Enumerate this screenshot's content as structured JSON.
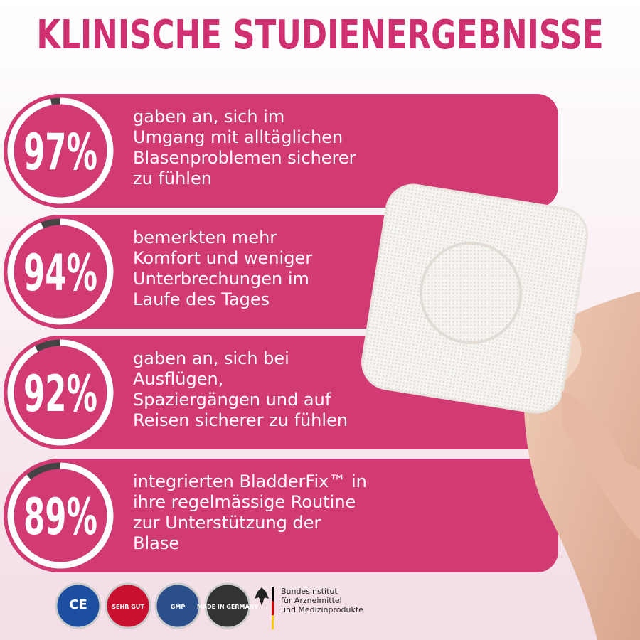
{
  "header": {
    "title": "KLINISCHE STUDIENERGEBNISSE"
  },
  "results": [
    {
      "value": 97,
      "label": "97%",
      "lines": [
        "gaben an, sich im",
        "Umgang mit alltäglichen",
        "Blasenproblemen sicherer",
        "zu fühlen"
      ]
    },
    {
      "value": 94,
      "label": "94%",
      "lines": [
        "bemerkten mehr",
        "Komfort und weniger",
        "Unterbrechungen im",
        "Laufe des Tages"
      ]
    },
    {
      "value": 92,
      "label": "92%",
      "lines": [
        "gaben an, sich bei",
        "Ausflügen,",
        "Spaziergängen und auf",
        "Reisen sicherer zu fühlen"
      ]
    },
    {
      "value": 89,
      "label": "89%",
      "lines": [
        "integrierten BladderFix™ in",
        "ihre regelmässige Routine",
        "zur Unterstützung der",
        "Blase"
      ]
    }
  ],
  "badges": [
    "CE",
    "SEHR GUT",
    "GMP",
    "MADE IN GERMANY"
  ],
  "institute": [
    "Bundesinstitut",
    "für Arzneimittel",
    "und Medizinprodukte"
  ]
}
